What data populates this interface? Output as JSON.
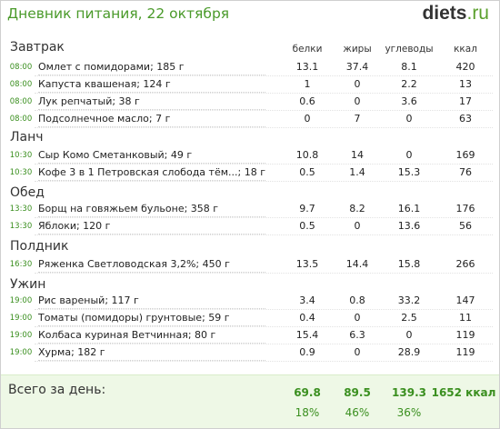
{
  "header": {
    "title": "Дневник питания, 22 октября",
    "logo_domain": "diets",
    "logo_tld": ".ru"
  },
  "columns": {
    "protein": "белки",
    "fat": "жиры",
    "carbs": "углеводы",
    "kcal": "ккал"
  },
  "meals": [
    {
      "title": "Завтрак",
      "items": [
        {
          "time": "08:00",
          "name": "Омлет с помидорами; 185 г",
          "protein": "13.1",
          "fat": "37.4",
          "carbs": "8.1",
          "kcal": "420"
        },
        {
          "time": "08:00",
          "name": "Капуста квашеная; 124 г",
          "protein": "1",
          "fat": "0",
          "carbs": "2.2",
          "kcal": "13"
        },
        {
          "time": "08:00",
          "name": "Лук репчатый; 38 г",
          "protein": "0.6",
          "fat": "0",
          "carbs": "3.6",
          "kcal": "17"
        },
        {
          "time": "08:00",
          "name": "Подсолнечное масло; 7 г",
          "protein": "0",
          "fat": "7",
          "carbs": "0",
          "kcal": "63"
        }
      ]
    },
    {
      "title": "Ланч",
      "items": [
        {
          "time": "10:30",
          "name": "Сыр Комо Сметанковый; 49 г",
          "protein": "10.8",
          "fat": "14",
          "carbs": "0",
          "kcal": "169"
        },
        {
          "time": "10:30",
          "name": "Кофе 3 в 1 Петровская слобода тём...; 18 г",
          "protein": "0.5",
          "fat": "1.4",
          "carbs": "15.3",
          "kcal": "76"
        }
      ]
    },
    {
      "title": "Обед",
      "items": [
        {
          "time": "13:30",
          "name": "Борщ на говяжьем бульоне; 358 г",
          "protein": "9.7",
          "fat": "8.2",
          "carbs": "16.1",
          "kcal": "176"
        },
        {
          "time": "13:30",
          "name": "Яблоки; 120 г",
          "protein": "0.5",
          "fat": "0",
          "carbs": "13.6",
          "kcal": "56"
        }
      ]
    },
    {
      "title": "Полдник",
      "items": [
        {
          "time": "16:30",
          "name": "Ряженка Светловодская 3,2%; 450 г",
          "protein": "13.5",
          "fat": "14.4",
          "carbs": "15.8",
          "kcal": "266"
        }
      ]
    },
    {
      "title": "Ужин",
      "items": [
        {
          "time": "19:00",
          "name": "Рис вареный; 117 г",
          "protein": "3.4",
          "fat": "0.8",
          "carbs": "33.2",
          "kcal": "147"
        },
        {
          "time": "19:00",
          "name": "Томаты (помидоры) грунтовые; 59 г",
          "protein": "0.4",
          "fat": "0",
          "carbs": "2.5",
          "kcal": "11"
        },
        {
          "time": "19:00",
          "name": "Колбаса куриная Ветчинная; 80 г",
          "protein": "15.4",
          "fat": "6.3",
          "carbs": "0",
          "kcal": "119"
        },
        {
          "time": "19:00",
          "name": "Хурма; 182 г",
          "protein": "0.9",
          "fat": "0",
          "carbs": "28.9",
          "kcal": "119"
        }
      ]
    }
  ],
  "totals": {
    "label": "Всего за день:",
    "protein": "69.8",
    "fat": "89.5",
    "carbs": "139.3",
    "kcal": "1652 ккал",
    "protein_pct": "18%",
    "fat_pct": "46%",
    "carbs_pct": "36%"
  },
  "colors": {
    "accent_green": "#3a8f1f",
    "title_green": "#4a9a2a",
    "totals_bg": "#eef8e6"
  }
}
